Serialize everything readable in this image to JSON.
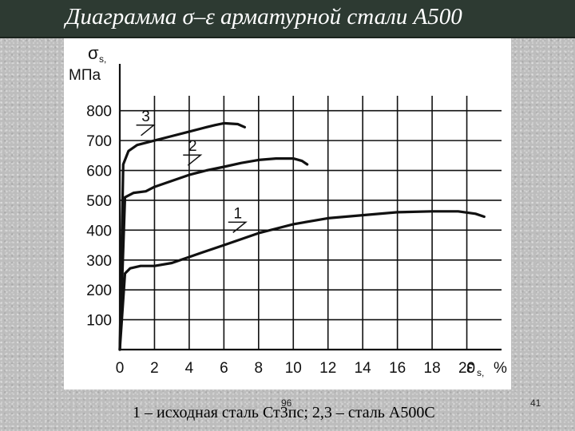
{
  "slide": {
    "title": "Диаграмма σ–ε арматурной стали А500",
    "caption": "1 – исходная сталь Ст3пс; 2,3 – сталь А500С",
    "page_mark": "96",
    "slide_number": "41"
  },
  "chart_data": {
    "type": "line",
    "y_label_symbol": "σ",
    "y_label_subscript": "s,",
    "y_unit": "МПа",
    "x_label_symbol": "ε",
    "x_label_subscript": "s,",
    "x_unit": "%",
    "xlim": [
      0,
      22
    ],
    "ylim": [
      0,
      850
    ],
    "x_ticks": [
      0,
      2,
      4,
      6,
      8,
      10,
      12,
      14,
      16,
      18,
      20
    ],
    "y_ticks": [
      100,
      200,
      300,
      400,
      500,
      600,
      700,
      800
    ],
    "grid": true,
    "series": [
      {
        "name": "1",
        "label_at": [
          6.8,
          440
        ],
        "points": [
          [
            0,
            0
          ],
          [
            0.3,
            255
          ],
          [
            0.6,
            272
          ],
          [
            1.2,
            280
          ],
          [
            2.0,
            280
          ],
          [
            3.0,
            290
          ],
          [
            4.0,
            310
          ],
          [
            5.0,
            330
          ],
          [
            6.0,
            350
          ],
          [
            7.0,
            370
          ],
          [
            8.0,
            390
          ],
          [
            9.0,
            405
          ],
          [
            10.0,
            420
          ],
          [
            12.0,
            440
          ],
          [
            14.0,
            450
          ],
          [
            16.0,
            460
          ],
          [
            18.0,
            463
          ],
          [
            19.5,
            463
          ],
          [
            20.5,
            455
          ],
          [
            21.0,
            445
          ]
        ]
      },
      {
        "name": "2",
        "label_at": [
          4.2,
          665
        ],
        "points": [
          [
            0,
            0
          ],
          [
            0.3,
            510
          ],
          [
            0.8,
            525
          ],
          [
            1.5,
            530
          ],
          [
            2.0,
            545
          ],
          [
            3.0,
            565
          ],
          [
            4.0,
            585
          ],
          [
            5.0,
            600
          ],
          [
            6.0,
            612
          ],
          [
            7.0,
            625
          ],
          [
            8.0,
            635
          ],
          [
            9.0,
            640
          ],
          [
            10.0,
            640
          ],
          [
            10.5,
            632
          ],
          [
            10.8,
            620
          ]
        ]
      },
      {
        "name": "3",
        "label_at": [
          1.5,
          765
        ],
        "points": [
          [
            0,
            0
          ],
          [
            0.2,
            620
          ],
          [
            0.5,
            665
          ],
          [
            1.0,
            685
          ],
          [
            2.0,
            700
          ],
          [
            3.0,
            715
          ],
          [
            4.0,
            730
          ],
          [
            5.0,
            745
          ],
          [
            5.5,
            752
          ],
          [
            6.0,
            758
          ],
          [
            6.8,
            755
          ],
          [
            7.2,
            745
          ]
        ]
      }
    ]
  }
}
